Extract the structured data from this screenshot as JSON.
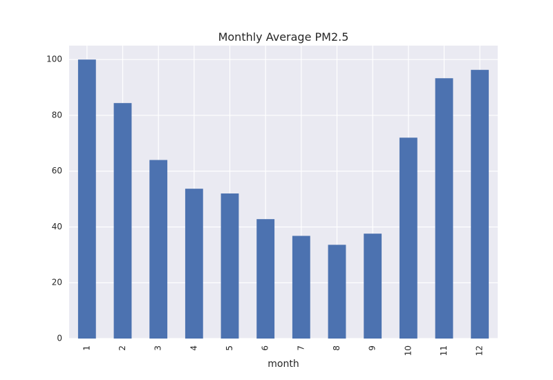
{
  "chart_data": {
    "type": "bar",
    "title": "Monthly Average PM2.5",
    "xlabel": "month",
    "ylabel": "",
    "categories": [
      "1",
      "2",
      "3",
      "4",
      "5",
      "6",
      "7",
      "8",
      "9",
      "10",
      "11",
      "12"
    ],
    "values": [
      100.0,
      84.4,
      64.0,
      53.7,
      52.0,
      42.8,
      36.8,
      33.6,
      37.6,
      72.0,
      93.3,
      96.3
    ],
    "ylim": [
      0,
      105
    ],
    "yticks": [
      "0",
      "20",
      "40",
      "60",
      "80",
      "100"
    ],
    "grid": true,
    "legend": "none",
    "colors": {
      "bar": "#4C72B0",
      "plot_background": "#EAEAF2",
      "grid": "#FFFFFF"
    }
  }
}
